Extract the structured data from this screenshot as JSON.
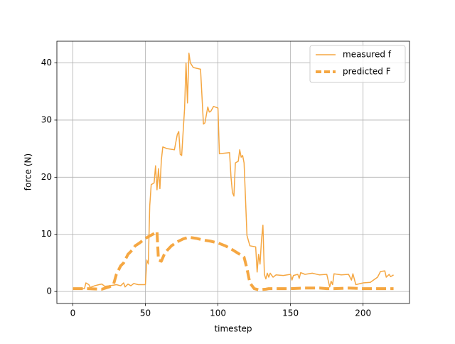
{
  "chart_data": {
    "type": "line",
    "xlabel": "timestep",
    "ylabel": "force (N)",
    "xlim": [
      -11,
      232
    ],
    "ylim": [
      -2.1,
      43.8
    ],
    "xticks": [
      0,
      50,
      100,
      150,
      200
    ],
    "yticks": [
      0,
      10,
      20,
      30,
      40
    ],
    "grid": true,
    "legend": "upper right",
    "series": [
      {
        "name": "measured f",
        "color": "#f5a742",
        "style": "solid",
        "x": [
          0,
          5,
          8,
          9,
          11,
          12,
          15,
          18,
          20,
          22,
          25,
          28,
          30,
          33,
          35,
          36,
          38,
          40,
          42,
          45,
          48,
          50,
          51,
          52,
          53,
          54,
          56,
          57,
          58,
          59,
          60,
          61,
          62,
          65,
          70,
          72,
          73,
          74,
          75,
          77,
          78,
          79,
          80,
          81,
          83,
          88,
          90,
          91,
          93,
          94,
          95,
          97,
          100,
          101,
          104,
          108,
          109,
          110,
          111,
          112,
          114,
          115,
          116,
          117,
          118,
          120,
          122,
          126,
          127,
          128,
          129,
          130,
          131,
          132,
          133,
          134,
          135,
          136,
          138,
          140,
          145,
          150,
          151,
          152,
          155,
          156,
          157,
          160,
          165,
          170,
          175,
          177,
          178,
          179,
          180,
          185,
          190,
          192,
          193,
          195,
          200,
          205,
          210,
          212,
          215,
          216,
          218,
          219,
          221
        ],
        "values": [
          0.5,
          0.5,
          0.5,
          1.5,
          1.2,
          0.7,
          1.0,
          1.2,
          1.3,
          0.9,
          1.0,
          1.1,
          1.2,
          1.0,
          1.5,
          0.8,
          1.3,
          1.0,
          1.4,
          1.2,
          1.2,
          1.2,
          5.5,
          4.8,
          15,
          18.7,
          19,
          22,
          17.8,
          21.5,
          18,
          23,
          25.3,
          25,
          24.8,
          27.5,
          28,
          24,
          23.8,
          32,
          40,
          33,
          41.7,
          40,
          39.2,
          38.9,
          29.3,
          29.5,
          32.3,
          31.4,
          31.5,
          32.4,
          32.1,
          24.1,
          24.2,
          24.3,
          20,
          17.3,
          16.7,
          22.5,
          22.8,
          24.8,
          23.5,
          23.8,
          22.5,
          9.8,
          8,
          7.8,
          3.4,
          6.5,
          4.8,
          9,
          11.6,
          3,
          2.2,
          3.2,
          2.5,
          3.2,
          2.5,
          2.9,
          2.8,
          3.0,
          2,
          2.8,
          3,
          2.3,
          3.3,
          3.0,
          3.2,
          2.9,
          3.0,
          0.8,
          1.8,
          1.2,
          3.1,
          2.9,
          3.0,
          2.0,
          3.1,
          1.2,
          1.5,
          1.6,
          2.5,
          3.5,
          3.6,
          2.5,
          3.0,
          2.6,
          2.9
        ]
      },
      {
        "name": "predicted F",
        "color": "#f5a742",
        "style": "dashed",
        "x": [
          0,
          10,
          20,
          25,
          28,
          30,
          33,
          35,
          38,
          40,
          43,
          46,
          50,
          55,
          57,
          58,
          59,
          61,
          63,
          65,
          68,
          72,
          76,
          80,
          85,
          90,
          95,
          100,
          105,
          110,
          115,
          118,
          120,
          122,
          125,
          128,
          133,
          135,
          140,
          150,
          160,
          170,
          175,
          180,
          190,
          200,
          210,
          221
        ],
        "values": [
          0.5,
          0.5,
          0.4,
          0.8,
          1.2,
          3,
          4.5,
          5,
          6.5,
          7,
          8,
          8.5,
          9.3,
          10,
          10.3,
          10.5,
          5.5,
          5.3,
          6.5,
          7.2,
          8,
          8.7,
          9.2,
          9.5,
          9.3,
          9.0,
          8.8,
          8.5,
          8.0,
          7.3,
          6.5,
          6.0,
          4,
          1.5,
          0.5,
          0.3,
          0.4,
          0.5,
          0.5,
          0.5,
          0.6,
          0.6,
          0.5,
          0.5,
          0.6,
          0.5,
          0.5,
          0.5
        ]
      }
    ]
  }
}
